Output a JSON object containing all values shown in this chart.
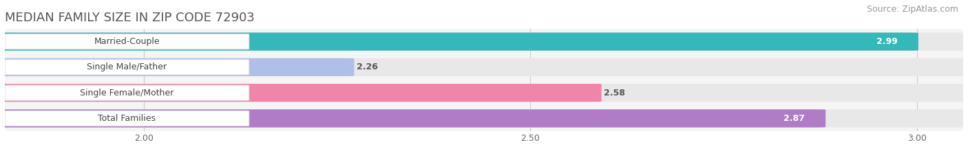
{
  "title": "MEDIAN FAMILY SIZE IN ZIP CODE 72903",
  "source": "Source: ZipAtlas.com",
  "categories": [
    "Married-Couple",
    "Single Male/Father",
    "Single Female/Mother",
    "Total Families"
  ],
  "values": [
    2.99,
    2.26,
    2.58,
    2.87
  ],
  "bar_colors": [
    "#35b8b8",
    "#b0bfe8",
    "#f085aa",
    "#b07cc6"
  ],
  "value_inside": [
    true,
    false,
    false,
    true
  ],
  "xlim_min": 1.82,
  "xlim_max": 3.06,
  "xticks": [
    2.0,
    2.5,
    3.0
  ],
  "bar_height": 0.68,
  "bar_gap": 0.32,
  "title_fontsize": 13,
  "source_fontsize": 9,
  "tick_fontsize": 9,
  "category_fontsize": 9,
  "value_fontsize": 9,
  "bg_color": "#ffffff",
  "plot_bg": "#f5f5f5",
  "label_box_color": "#ffffff",
  "label_box_edge": "#dddddd",
  "bar_bg_color": "#e8e8e8",
  "grid_color": "#cccccc",
  "title_color": "#555555",
  "source_color": "#999999",
  "tick_color": "#666666",
  "cat_text_color": "#444444",
  "val_inside_color": "#ffffff",
  "val_outside_color": "#555555"
}
